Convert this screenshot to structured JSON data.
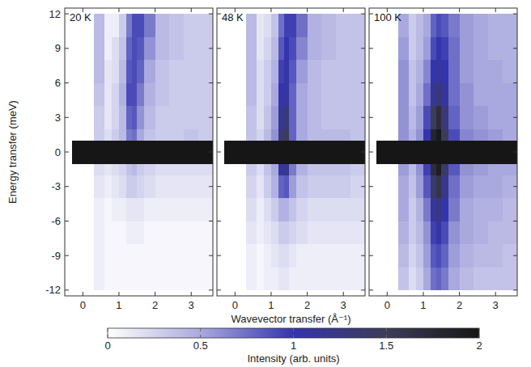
{
  "chart_data": [
    {
      "type": "heatmap",
      "title": "20 K",
      "y_label": "Energy transfer (meV)",
      "xlim": [
        -0.5,
        3.6
      ],
      "ylim": [
        -12.5,
        12.5
      ],
      "xticks": [
        0,
        1,
        2,
        3
      ],
      "yticks": [
        -12,
        -9,
        -6,
        -3,
        0,
        3,
        6,
        9,
        12
      ],
      "x_edges": [
        -0.3,
        0.3,
        0.6,
        0.8,
        1.0,
        1.2,
        1.35,
        1.5,
        1.7,
        2.0,
        2.4,
        2.8,
        3.2,
        3.6
      ],
      "y_edges": [
        -12,
        -10,
        -8,
        -6,
        -4,
        -2,
        -1,
        1,
        2,
        4,
        6,
        8,
        10,
        12
      ],
      "cells": [
        [
          null,
          0.1,
          0.05,
          0.05,
          0.05,
          0.05,
          0.05,
          0.05,
          0.05,
          0.05,
          0.05,
          0.05,
          0.05
        ],
        [
          null,
          0.1,
          0.05,
          0.05,
          0.05,
          0.05,
          0.05,
          0.05,
          0.05,
          0.05,
          0.05,
          0.05,
          0.05
        ],
        [
          null,
          0.1,
          0.05,
          0.05,
          0.05,
          0.1,
          0.1,
          0.1,
          0.05,
          0.05,
          0.05,
          0.05,
          0.05
        ],
        [
          null,
          0.1,
          0.05,
          0.1,
          0.1,
          0.15,
          0.15,
          0.15,
          0.1,
          0.1,
          0.1,
          0.1,
          0.1
        ],
        [
          null,
          0.15,
          0.1,
          0.15,
          0.2,
          0.3,
          0.3,
          0.25,
          0.2,
          0.15,
          0.15,
          0.15,
          0.15
        ],
        [
          null,
          0.2,
          0.15,
          0.2,
          0.25,
          0.35,
          0.4,
          0.3,
          0.25,
          0.2,
          0.2,
          0.2,
          0.2
        ],
        [
          2,
          2,
          2,
          2,
          2,
          2,
          2,
          2,
          2,
          2,
          2,
          2,
          2
        ],
        [
          null,
          0.3,
          0.2,
          0.3,
          0.4,
          0.7,
          0.75,
          0.5,
          0.35,
          0.3,
          0.3,
          0.35,
          0.3
        ],
        [
          null,
          0.3,
          0.15,
          0.25,
          0.4,
          0.8,
          0.85,
          0.6,
          0.4,
          0.3,
          0.3,
          0.3,
          0.3
        ],
        [
          null,
          0.35,
          0.15,
          0.25,
          0.45,
          0.9,
          0.9,
          0.7,
          0.45,
          0.35,
          0.3,
          0.3,
          0.3
        ],
        [
          null,
          0.4,
          0.15,
          0.2,
          0.4,
          0.85,
          0.9,
          0.8,
          0.5,
          0.35,
          0.3,
          0.3,
          0.3
        ],
        [
          null,
          0.4,
          0.1,
          0.2,
          0.35,
          0.8,
          0.9,
          0.85,
          0.6,
          0.4,
          0.35,
          0.3,
          0.3
        ],
        [
          null,
          0.4,
          0.1,
          0.1,
          0.3,
          0.7,
          0.9,
          0.9,
          0.7,
          0.4,
          0.35,
          0.3,
          0.3
        ]
      ]
    },
    {
      "type": "heatmap",
      "title": "48 K",
      "x_label": "Wavevector transfer (Å⁻¹)",
      "tick_labels": "x",
      "xlim": [
        -0.5,
        3.6
      ],
      "ylim": [
        -12.5,
        12.5
      ],
      "xticks": [
        0,
        1,
        2,
        3
      ],
      "yticks": [
        -12,
        -9,
        -6,
        -3,
        0,
        3,
        6,
        9,
        12
      ],
      "x_edges": [
        -0.3,
        0.3,
        0.6,
        0.8,
        1.0,
        1.2,
        1.35,
        1.5,
        1.7,
        2.0,
        2.4,
        2.8,
        3.2,
        3.6
      ],
      "y_edges": [
        -12,
        -10,
        -8,
        -6,
        -4,
        -2,
        -1,
        1,
        2,
        4,
        6,
        8,
        10,
        12
      ],
      "cells": [
        [
          null,
          0.1,
          0.05,
          0.1,
          0.1,
          0.15,
          0.15,
          0.1,
          0.1,
          0.1,
          0.1,
          0.1,
          0.1
        ],
        [
          null,
          0.1,
          0.05,
          0.1,
          0.15,
          0.2,
          0.2,
          0.15,
          0.1,
          0.1,
          0.1,
          0.1,
          0.1
        ],
        [
          null,
          0.15,
          0.1,
          0.15,
          0.2,
          0.3,
          0.3,
          0.25,
          0.2,
          0.15,
          0.15,
          0.15,
          0.15
        ],
        [
          null,
          0.2,
          0.1,
          0.2,
          0.3,
          0.45,
          0.45,
          0.35,
          0.25,
          0.2,
          0.2,
          0.2,
          0.2
        ],
        [
          null,
          0.25,
          0.15,
          0.3,
          0.45,
          0.8,
          0.85,
          0.55,
          0.35,
          0.3,
          0.3,
          0.3,
          0.25
        ],
        [
          null,
          0.3,
          0.2,
          0.35,
          0.5,
          1.1,
          1.2,
          0.7,
          0.45,
          0.35,
          0.35,
          0.35,
          0.3
        ],
        [
          2,
          2,
          2,
          2,
          2,
          2,
          2,
          2,
          2,
          2,
          2,
          2,
          2
        ],
        [
          null,
          0.35,
          0.25,
          0.4,
          0.6,
          1.3,
          1.5,
          0.8,
          0.5,
          0.4,
          0.4,
          0.4,
          0.35
        ],
        [
          null,
          0.35,
          0.2,
          0.35,
          0.55,
          1.15,
          1.3,
          0.8,
          0.5,
          0.4,
          0.35,
          0.35,
          0.35
        ],
        [
          null,
          0.4,
          0.2,
          0.3,
          0.5,
          1.0,
          1.1,
          0.8,
          0.5,
          0.4,
          0.35,
          0.35,
          0.35
        ],
        [
          null,
          0.4,
          0.2,
          0.3,
          0.45,
          0.95,
          1.05,
          0.85,
          0.55,
          0.4,
          0.35,
          0.35,
          0.35
        ],
        [
          null,
          0.4,
          0.15,
          0.25,
          0.4,
          0.85,
          1.0,
          0.9,
          0.65,
          0.45,
          0.4,
          0.35,
          0.35
        ],
        [
          null,
          0.4,
          0.15,
          0.2,
          0.35,
          0.75,
          0.95,
          0.95,
          0.75,
          0.45,
          0.4,
          0.35,
          0.35
        ]
      ]
    },
    {
      "type": "heatmap",
      "title": "100 K",
      "tick_labels": "x",
      "xlim": [
        -0.5,
        3.6
      ],
      "ylim": [
        -12.5,
        12.5
      ],
      "xticks": [
        0,
        1,
        2,
        3
      ],
      "yticks": [
        -12,
        -9,
        -6,
        -3,
        0,
        3,
        6,
        9,
        12
      ],
      "x_edges": [
        -0.3,
        0.3,
        0.6,
        0.8,
        1.0,
        1.2,
        1.35,
        1.5,
        1.7,
        2.0,
        2.4,
        2.8,
        3.2,
        3.6
      ],
      "y_edges": [
        -12,
        -10,
        -8,
        -6,
        -4,
        -2,
        -1,
        1,
        2,
        4,
        6,
        8,
        10,
        12
      ],
      "cells": [
        [
          null,
          0.35,
          0.2,
          0.3,
          0.5,
          0.75,
          0.8,
          0.7,
          0.5,
          0.4,
          0.35,
          0.35,
          0.35
        ],
        [
          null,
          0.4,
          0.25,
          0.35,
          0.55,
          0.85,
          0.9,
          0.8,
          0.55,
          0.45,
          0.4,
          0.4,
          0.35
        ],
        [
          null,
          0.45,
          0.3,
          0.4,
          0.6,
          0.95,
          1.05,
          0.9,
          0.6,
          0.5,
          0.45,
          0.4,
          0.4
        ],
        [
          null,
          0.5,
          0.3,
          0.45,
          0.7,
          1.1,
          1.25,
          1.0,
          0.7,
          0.5,
          0.45,
          0.45,
          0.4
        ],
        [
          null,
          0.5,
          0.35,
          0.55,
          0.85,
          1.4,
          1.6,
          1.2,
          0.75,
          0.55,
          0.5,
          0.5,
          0.45
        ],
        [
          null,
          0.55,
          0.4,
          0.6,
          0.95,
          1.7,
          1.9,
          1.4,
          0.85,
          0.6,
          0.55,
          0.5,
          0.5
        ],
        [
          2,
          2,
          2,
          2,
          2,
          2,
          2,
          2,
          2,
          2,
          2,
          2,
          2
        ],
        [
          null,
          0.6,
          0.45,
          0.6,
          1.0,
          1.8,
          1.95,
          1.5,
          0.9,
          0.65,
          0.6,
          0.55,
          0.5
        ],
        [
          null,
          0.6,
          0.4,
          0.55,
          0.9,
          1.5,
          1.7,
          1.3,
          0.8,
          0.6,
          0.55,
          0.5,
          0.5
        ],
        [
          null,
          0.6,
          0.35,
          0.5,
          0.75,
          1.15,
          1.3,
          1.1,
          0.75,
          0.6,
          0.5,
          0.5,
          0.5
        ],
        [
          null,
          0.6,
          0.35,
          0.45,
          0.65,
          1.0,
          1.1,
          1.0,
          0.75,
          0.55,
          0.5,
          0.5,
          0.45
        ],
        [
          null,
          0.55,
          0.3,
          0.4,
          0.55,
          0.9,
          1.0,
          0.95,
          0.75,
          0.55,
          0.5,
          0.45,
          0.45
        ],
        [
          null,
          0.5,
          0.3,
          0.4,
          0.5,
          0.8,
          0.9,
          0.85,
          0.7,
          0.55,
          0.5,
          0.45,
          0.45
        ]
      ]
    }
  ],
  "colorbar": {
    "label": "Intensity (arb. units)",
    "range": [
      0,
      2
    ],
    "ticks": [
      0,
      0.5,
      1,
      1.5,
      2
    ],
    "colors": [
      "#ffffff",
      "#a9a9df",
      "#3434ae",
      "#3c3c58",
      "#161616"
    ]
  }
}
